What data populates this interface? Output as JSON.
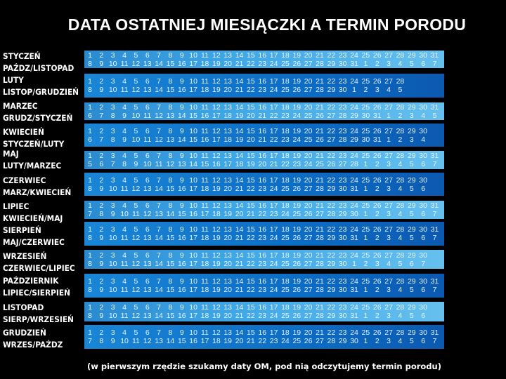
{
  "title": "DATA OSTATNIEJ MIESIĄCZKI A TERMIN PORODU",
  "footer": "(w pierwszym rzędzie szukamy daty OM, pod nią odczytujemy termin porodu)",
  "colors": {
    "background": "#000000",
    "band_light": "#3fa6e6",
    "band_dark": "#0d6cc4",
    "text": "#ffffff"
  },
  "rows": [
    {
      "month": "STYCZEŃ",
      "due": "PAŹDZ/LISTOPAD",
      "style": "light",
      "top": [
        1,
        2,
        3,
        4,
        5,
        6,
        7,
        8,
        9,
        10,
        11,
        12,
        13,
        14,
        15,
        16,
        17,
        18,
        19,
        20,
        21,
        22,
        23,
        24,
        25,
        26,
        27,
        28,
        29,
        30,
        31
      ],
      "bottom": [
        8,
        9,
        10,
        11,
        12,
        13,
        14,
        15,
        16,
        17,
        18,
        19,
        20,
        21,
        22,
        23,
        24,
        25,
        26,
        27,
        28,
        29,
        30,
        31,
        1,
        2,
        3,
        4,
        5,
        6,
        7
      ]
    },
    {
      "month": "LUTY",
      "due": "LISTOP/GRUDZIEŃ",
      "style": "dark",
      "top": [
        1,
        2,
        3,
        4,
        5,
        6,
        7,
        8,
        9,
        10,
        11,
        12,
        13,
        14,
        15,
        16,
        17,
        18,
        19,
        20,
        21,
        22,
        23,
        24,
        25,
        26,
        27,
        28
      ],
      "bottom": [
        8,
        9,
        10,
        11,
        12,
        13,
        14,
        15,
        16,
        17,
        18,
        19,
        20,
        21,
        22,
        23,
        24,
        25,
        26,
        27,
        28,
        29,
        30,
        1,
        2,
        3,
        4,
        5
      ]
    },
    {
      "month": "MARZEC",
      "due": "GRUDZ/STYCZEŃ",
      "style": "light",
      "top": [
        1,
        2,
        3,
        4,
        5,
        6,
        7,
        8,
        9,
        10,
        11,
        12,
        13,
        14,
        15,
        16,
        17,
        18,
        19,
        20,
        21,
        22,
        23,
        24,
        25,
        26,
        27,
        28,
        29,
        30,
        31
      ],
      "bottom": [
        6,
        7,
        8,
        9,
        10,
        11,
        12,
        13,
        14,
        15,
        16,
        17,
        18,
        19,
        20,
        21,
        22,
        23,
        24,
        25,
        26,
        27,
        28,
        29,
        30,
        31,
        1,
        2,
        3,
        4,
        5
      ]
    },
    {
      "month": "KWIECIEŃ",
      "due": "STYCZEŃ/LUTY",
      "style": "dark",
      "top": [
        1,
        2,
        3,
        4,
        5,
        6,
        7,
        8,
        9,
        10,
        11,
        12,
        13,
        14,
        15,
        16,
        17,
        18,
        19,
        20,
        21,
        22,
        23,
        24,
        25,
        26,
        27,
        28,
        29,
        30
      ],
      "bottom": [
        6,
        7,
        8,
        9,
        10,
        11,
        12,
        13,
        14,
        15,
        16,
        17,
        18,
        19,
        20,
        21,
        22,
        23,
        24,
        25,
        26,
        27,
        28,
        29,
        30,
        31,
        1,
        2,
        3,
        4
      ]
    },
    {
      "month": "MAJ",
      "due": "LUTY/MARZEC",
      "style": "light",
      "top": [
        1,
        2,
        3,
        4,
        5,
        6,
        7,
        8,
        9,
        10,
        11,
        12,
        13,
        14,
        15,
        16,
        17,
        18,
        19,
        20,
        21,
        22,
        23,
        24,
        25,
        26,
        27,
        28,
        29,
        30,
        31
      ],
      "bottom": [
        5,
        6,
        7,
        8,
        9,
        10,
        11,
        12,
        13,
        14,
        15,
        16,
        17,
        18,
        19,
        20,
        21,
        22,
        23,
        24,
        25,
        26,
        27,
        28,
        1,
        2,
        3,
        4,
        5,
        6,
        7
      ]
    },
    {
      "month": "CZERWIEC",
      "due": "MARZ/KWIECIEŃ",
      "style": "dark",
      "top": [
        1,
        2,
        3,
        4,
        5,
        6,
        7,
        8,
        9,
        10,
        11,
        12,
        13,
        14,
        15,
        16,
        17,
        18,
        19,
        20,
        21,
        22,
        23,
        24,
        25,
        26,
        27,
        28,
        29,
        30
      ],
      "bottom": [
        8,
        9,
        10,
        11,
        12,
        13,
        14,
        15,
        16,
        17,
        18,
        19,
        20,
        21,
        22,
        23,
        24,
        25,
        26,
        27,
        28,
        29,
        30,
        31,
        1,
        2,
        3,
        4,
        5,
        6
      ]
    },
    {
      "month": "LIPIEC",
      "due": "KWIECIEŃ/MAJ",
      "style": "light",
      "top": [
        1,
        2,
        3,
        4,
        5,
        6,
        7,
        8,
        9,
        10,
        11,
        12,
        13,
        14,
        15,
        16,
        17,
        18,
        19,
        20,
        21,
        22,
        23,
        24,
        25,
        26,
        27,
        28,
        29,
        30,
        31
      ],
      "bottom": [
        7,
        8,
        9,
        10,
        11,
        12,
        13,
        14,
        15,
        16,
        17,
        18,
        19,
        20,
        21,
        22,
        23,
        24,
        25,
        26,
        27,
        28,
        29,
        30,
        1,
        2,
        3,
        4,
        5,
        6,
        7
      ]
    },
    {
      "month": "SIERPIEŃ",
      "due": "MAJ/CZERWIEC",
      "style": "dark",
      "top": [
        1,
        2,
        3,
        4,
        5,
        6,
        7,
        8,
        9,
        10,
        11,
        12,
        13,
        14,
        15,
        16,
        17,
        18,
        19,
        20,
        21,
        22,
        23,
        24,
        25,
        26,
        27,
        28,
        29,
        30,
        31
      ],
      "bottom": [
        8,
        9,
        10,
        11,
        12,
        13,
        14,
        15,
        16,
        17,
        18,
        19,
        20,
        21,
        22,
        23,
        24,
        25,
        26,
        27,
        28,
        29,
        30,
        31,
        1,
        2,
        3,
        4,
        5,
        6,
        7
      ]
    },
    {
      "month": "WRZESIEŃ",
      "due": "CZERWIEC/LIPIEC",
      "style": "light",
      "top": [
        1,
        2,
        3,
        4,
        5,
        6,
        7,
        8,
        9,
        10,
        11,
        12,
        13,
        14,
        15,
        16,
        17,
        18,
        19,
        20,
        21,
        22,
        23,
        24,
        25,
        26,
        27,
        28,
        29,
        30
      ],
      "bottom": [
        8,
        9,
        10,
        11,
        12,
        13,
        14,
        15,
        16,
        17,
        18,
        19,
        20,
        21,
        22,
        23,
        24,
        25,
        26,
        27,
        28,
        29,
        30,
        1,
        2,
        3,
        4,
        5,
        6,
        7
      ]
    },
    {
      "month": "PAŹDZIERNIK",
      "due": "LIPIEC/SIERPIEŃ",
      "style": "dark",
      "top": [
        1,
        2,
        3,
        4,
        5,
        6,
        7,
        8,
        9,
        10,
        11,
        12,
        13,
        14,
        15,
        16,
        17,
        18,
        19,
        20,
        21,
        22,
        23,
        24,
        25,
        26,
        27,
        28,
        29,
        30,
        31
      ],
      "bottom": [
        8,
        9,
        10,
        11,
        12,
        13,
        14,
        15,
        16,
        17,
        18,
        19,
        20,
        21,
        22,
        23,
        24,
        25,
        26,
        27,
        28,
        29,
        30,
        31,
        1,
        2,
        3,
        4,
        5,
        6,
        7
      ]
    },
    {
      "month": "LISTOPAD",
      "due": "SIERP/WRZESIEŃ",
      "style": "light",
      "top": [
        1,
        2,
        3,
        4,
        5,
        6,
        7,
        8,
        9,
        10,
        11,
        12,
        13,
        14,
        15,
        16,
        17,
        18,
        19,
        20,
        21,
        22,
        23,
        24,
        25,
        26,
        27,
        28,
        29,
        30
      ],
      "bottom": [
        8,
        9,
        10,
        11,
        12,
        13,
        14,
        15,
        16,
        17,
        18,
        19,
        20,
        21,
        22,
        23,
        24,
        25,
        26,
        27,
        28,
        29,
        30,
        31,
        1,
        2,
        3,
        4,
        5,
        6
      ]
    },
    {
      "month": "GRUDZIEŃ",
      "due": "WRZES/PAŹDZ",
      "style": "dark",
      "top": [
        1,
        2,
        3,
        4,
        5,
        6,
        7,
        8,
        9,
        10,
        11,
        12,
        13,
        14,
        15,
        16,
        17,
        18,
        19,
        20,
        21,
        22,
        23,
        24,
        25,
        26,
        27,
        28,
        29,
        30,
        31
      ],
      "bottom": [
        7,
        8,
        9,
        10,
        11,
        12,
        13,
        14,
        15,
        16,
        17,
        18,
        19,
        20,
        21,
        22,
        23,
        24,
        25,
        26,
        27,
        28,
        29,
        30,
        1,
        2,
        3,
        4,
        5,
        6,
        7
      ]
    }
  ]
}
